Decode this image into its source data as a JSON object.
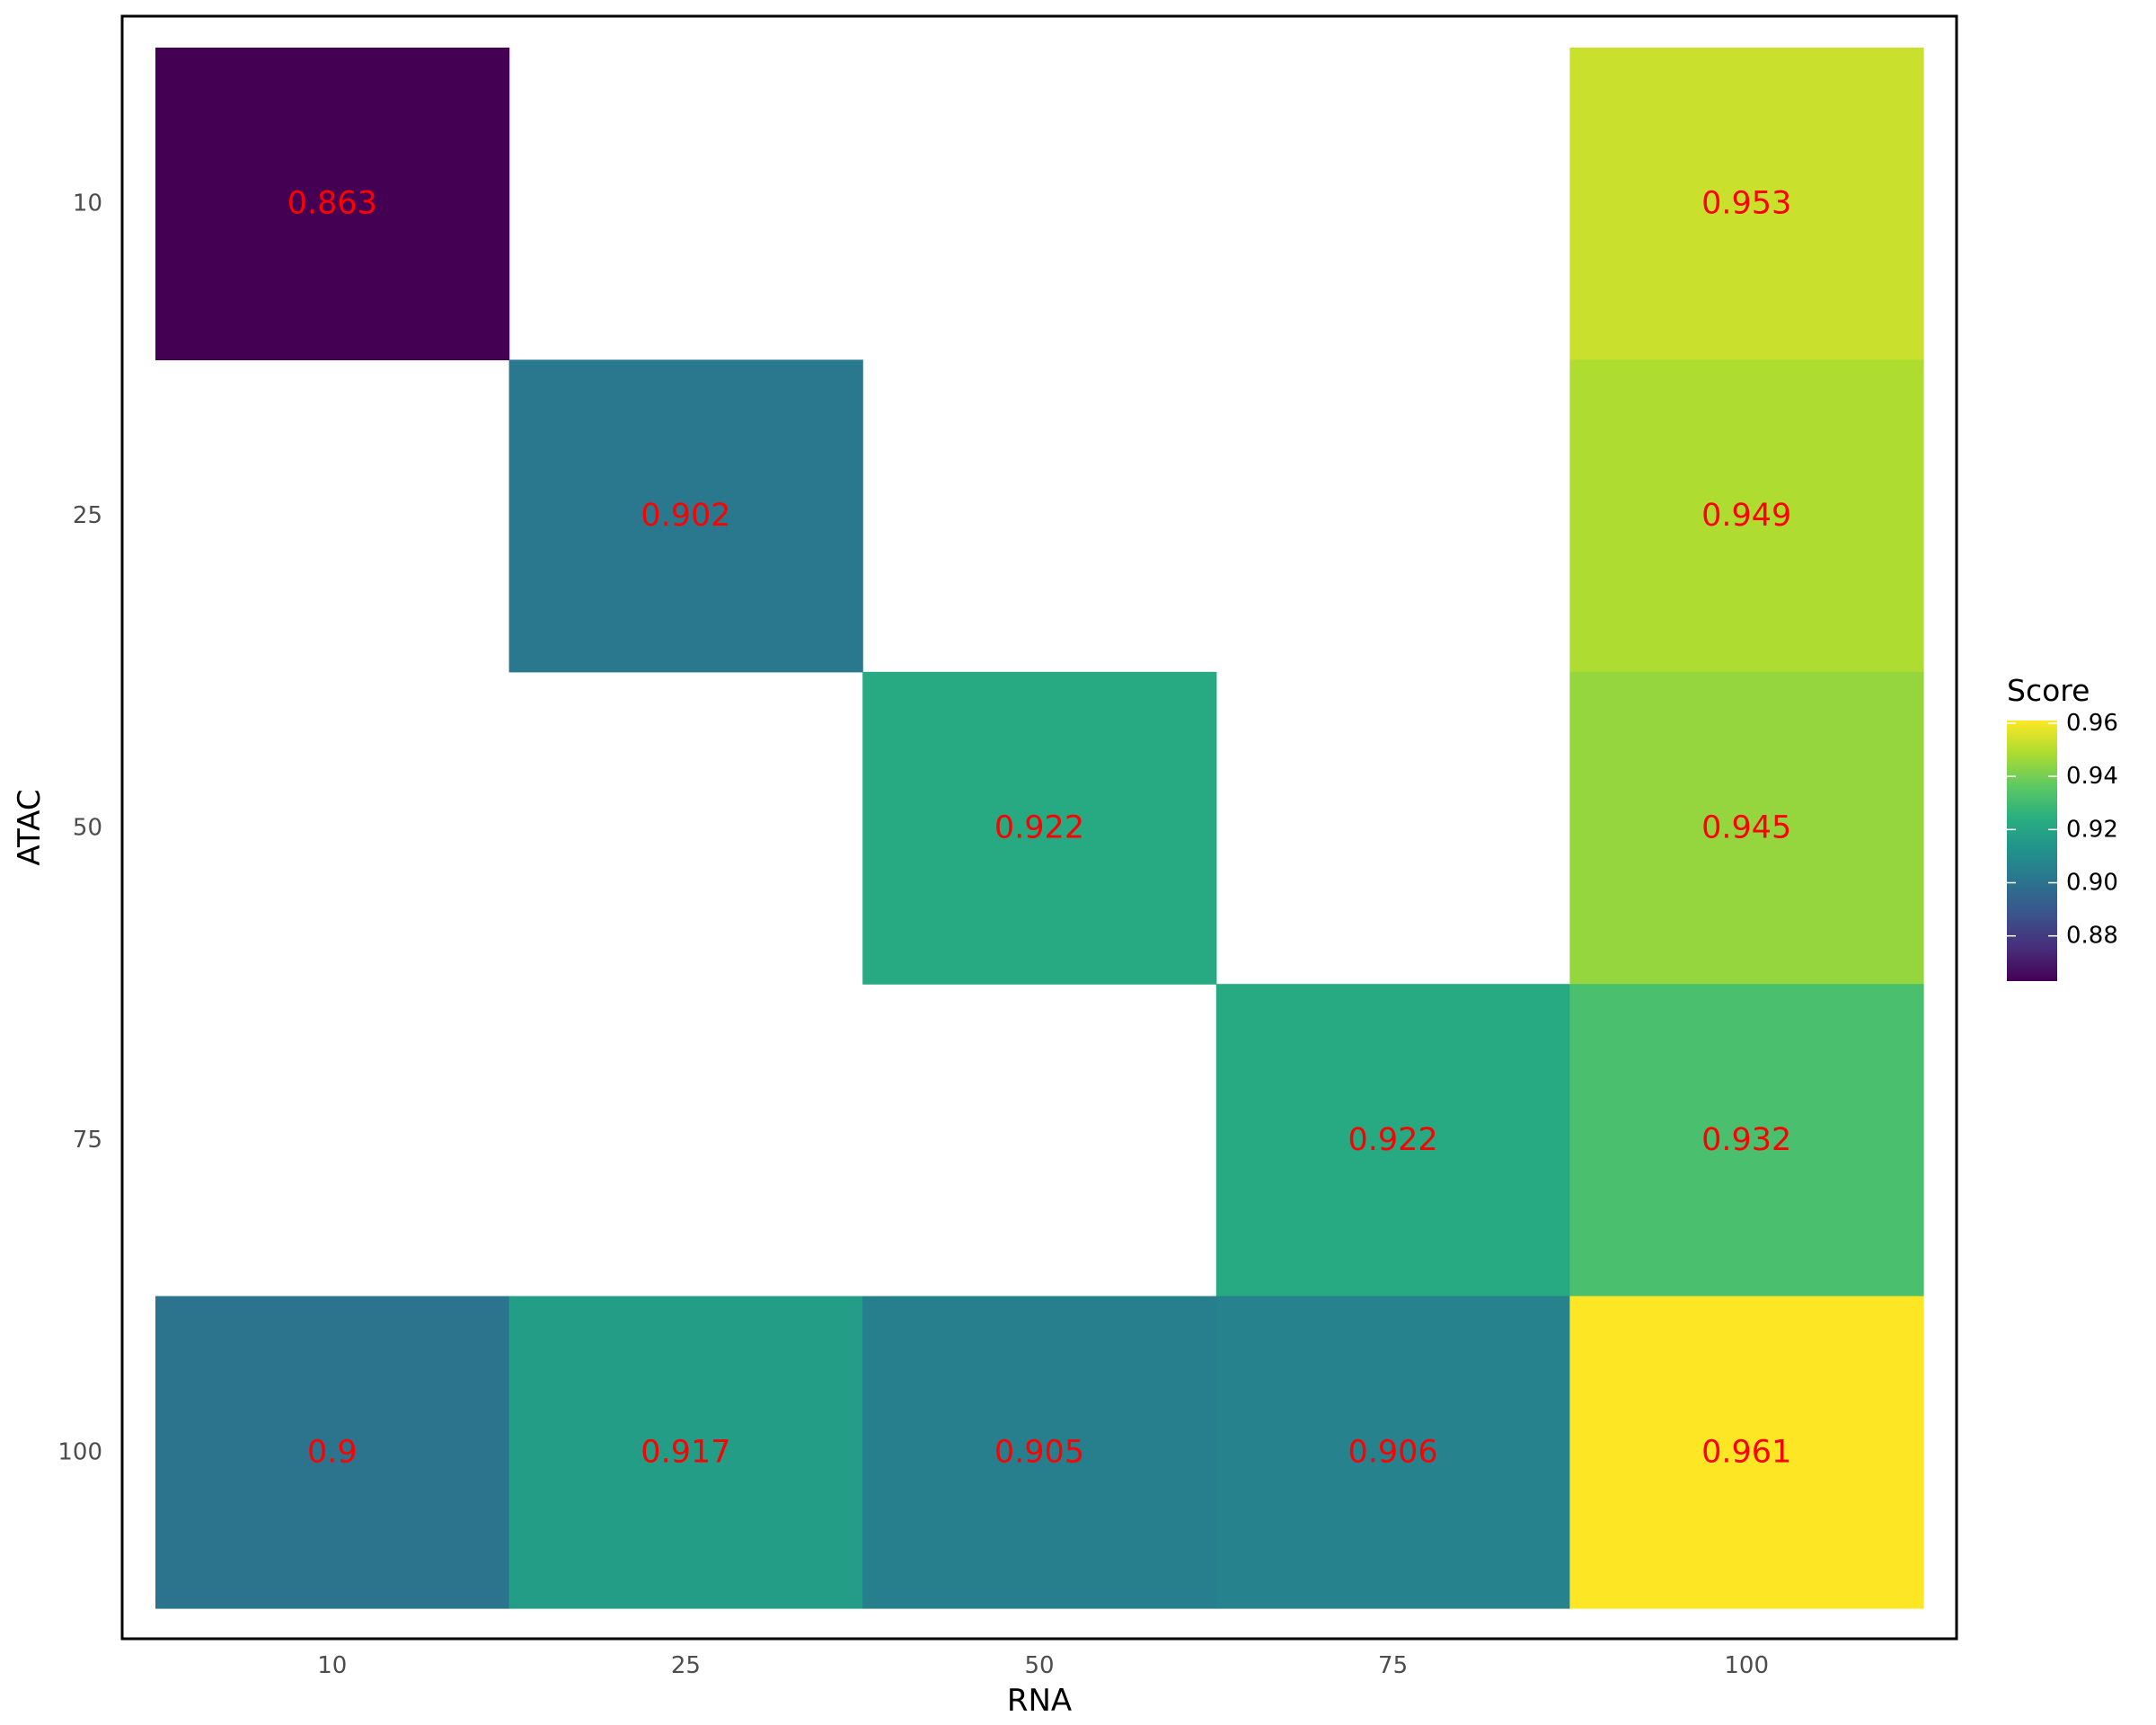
{
  "chart_data": {
    "type": "heatmap",
    "xlabel": "RNA",
    "ylabel": "ATAC",
    "x_categories": [
      "10",
      "25",
      "50",
      "75",
      "100"
    ],
    "y_categories": [
      "10",
      "25",
      "50",
      "75",
      "100"
    ],
    "cells": [
      {
        "x": "10",
        "y": "10",
        "value": 0.863,
        "label": "0.863"
      },
      {
        "x": "100",
        "y": "10",
        "value": 0.953,
        "label": "0.953"
      },
      {
        "x": "25",
        "y": "25",
        "value": 0.902,
        "label": "0.902"
      },
      {
        "x": "100",
        "y": "25",
        "value": 0.949,
        "label": "0.949"
      },
      {
        "x": "50",
        "y": "50",
        "value": 0.922,
        "label": "0.922"
      },
      {
        "x": "100",
        "y": "50",
        "value": 0.945,
        "label": "0.945"
      },
      {
        "x": "75",
        "y": "75",
        "value": 0.922,
        "label": "0.922"
      },
      {
        "x": "100",
        "y": "75",
        "value": 0.932,
        "label": "0.932"
      },
      {
        "x": "10",
        "y": "100",
        "value": 0.9,
        "label": "0.9"
      },
      {
        "x": "25",
        "y": "100",
        "value": 0.917,
        "label": "0.917"
      },
      {
        "x": "50",
        "y": "100",
        "value": 0.905,
        "label": "0.905"
      },
      {
        "x": "75",
        "y": "100",
        "value": 0.906,
        "label": "0.906"
      },
      {
        "x": "100",
        "y": "100",
        "value": 0.961,
        "label": "0.961"
      }
    ],
    "label_color": "#ff0000",
    "legend": {
      "title": "Score",
      "position": "right",
      "ticks": [
        0.88,
        0.9,
        0.92,
        0.94,
        0.96
      ],
      "tick_labels": [
        "0.88",
        "0.90",
        "0.92",
        "0.94",
        "0.96"
      ],
      "range": [
        0.863,
        0.961
      ],
      "palette": "viridis"
    },
    "grid": false
  }
}
